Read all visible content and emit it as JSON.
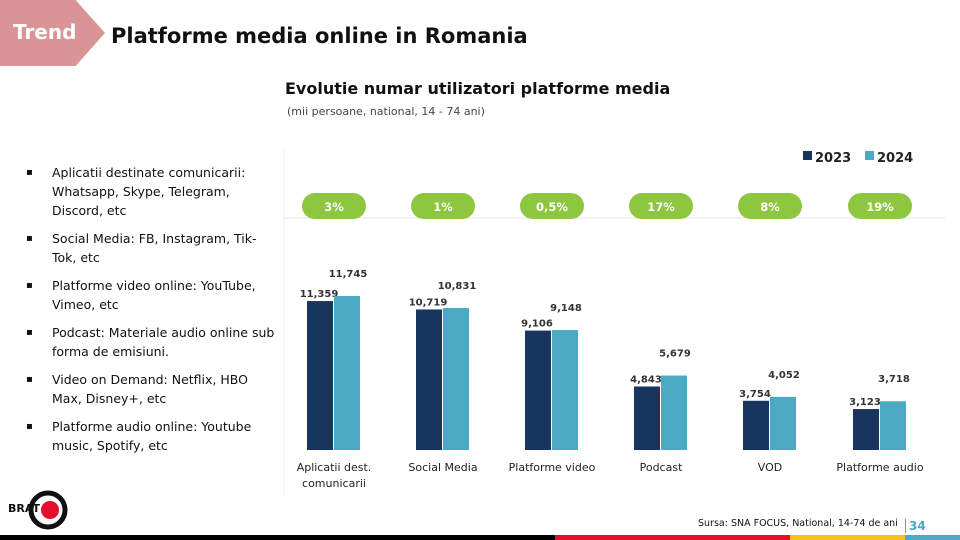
{
  "header": {
    "tag": "Trend",
    "title": "Platforme media online in Romania"
  },
  "bullets": [
    "Aplicatii destinate comunicarii: Whatsapp, Skype, Telegram, Discord, etc",
    "Social Media: FB, Instagram, Tik-Tok, etc",
    "Platforme video online: YouTube, Vimeo, etc",
    "Podcast: Materiale audio online sub forma de emisiuni.",
    "Video on Demand: Netflix, HBO Max, Disney+, etc",
    "Platforme audio online: Youtube music, Spotify, etc"
  ],
  "footer": {
    "source": "Sursa: SNA FOCUS, National, 14-74 de ani",
    "page": "34",
    "logo": "BRAT"
  },
  "colors": {
    "y2023": "#17355e",
    "y2024": "#4aaac3",
    "pill": "#8dc63f"
  },
  "chart_data": {
    "type": "bar",
    "title": "Evolutie numar utilizatori platforme media",
    "subtitle": "(mii persoane, national, 14  - 74 ani)",
    "categories": [
      [
        "Aplicatii dest.",
        "comunicarii"
      ],
      [
        "Social Media"
      ],
      [
        "Platforme video"
      ],
      [
        "Podcast"
      ],
      [
        "VOD"
      ],
      [
        "Platforme audio"
      ]
    ],
    "series": [
      {
        "name": "2023",
        "values": [
          11359,
          10719,
          9106,
          4843,
          3754,
          3123
        ],
        "labels": [
          "11,359",
          "10,719",
          "9,106",
          "4,843",
          "3,754",
          "3,123"
        ]
      },
      {
        "name": "2024",
        "values": [
          11745,
          10831,
          9148,
          5679,
          4052,
          3718
        ],
        "labels": [
          "11,745",
          "10,831",
          "9,148",
          "5,679",
          "4,052",
          "3,718"
        ]
      }
    ],
    "growth": [
      "3%",
      "1%",
      "0,5%",
      "17%",
      "8%",
      "19%"
    ],
    "legend": "top-right",
    "ylim": [
      0,
      12000
    ]
  }
}
